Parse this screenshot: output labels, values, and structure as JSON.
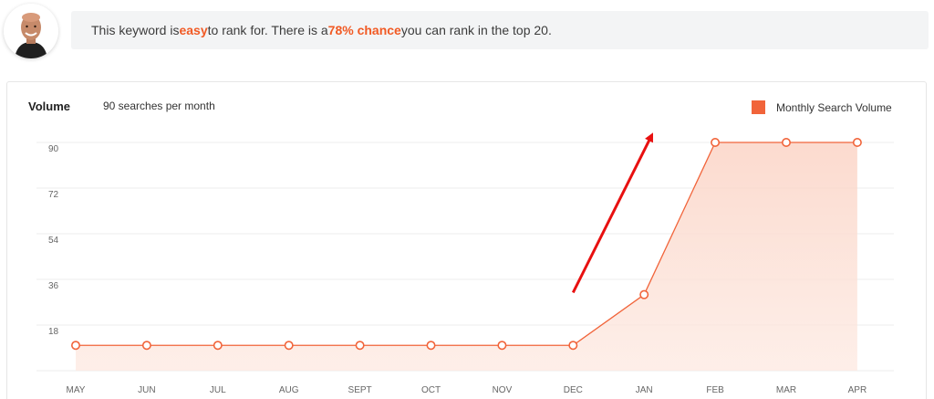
{
  "banner": {
    "text_1": "This keyword is ",
    "text_easy": "easy",
    "text_2": " to rank for. There is a ",
    "text_chance": "78% chance",
    "text_3": " you can rank in the top 20."
  },
  "chart_data": {
    "type": "area",
    "title": "Volume",
    "subtitle": "90 searches per month",
    "categories": [
      "MAY",
      "JUN",
      "JUL",
      "AUG",
      "SEPT",
      "OCT",
      "NOV",
      "DEC",
      "JAN",
      "FEB",
      "MAR",
      "APR"
    ],
    "series": [
      {
        "name": "Monthly Search Volume",
        "values": [
          10,
          10,
          10,
          10,
          10,
          10,
          10,
          10,
          30,
          90,
          90,
          90
        ]
      }
    ],
    "yticks": [
      18,
      36,
      54,
      72,
      90
    ],
    "ylim": [
      0,
      90
    ],
    "grid": true,
    "legend_position": "top-right",
    "colors": {
      "line": "#f1643a",
      "fill": "#fde2d8",
      "arrow": "#e81010"
    },
    "annotation": {
      "type": "arrow",
      "from": [
        "DEC",
        20
      ],
      "to": [
        "JAN",
        80
      ]
    }
  }
}
